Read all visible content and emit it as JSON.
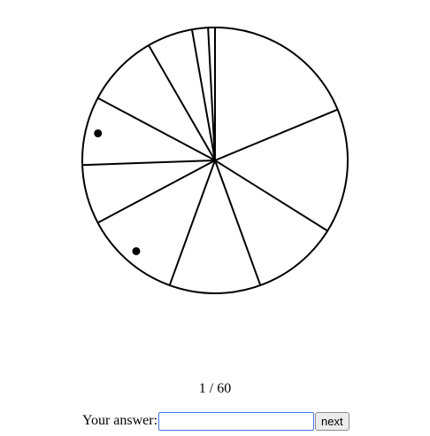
{
  "chart_data": {
    "type": "pie",
    "slice_boundaries_deg": [
      0,
      67.5,
      122,
      160,
      200,
      242,
      268,
      298,
      330,
      350,
      357
    ],
    "slices": [
      {
        "from_deg": 0,
        "to_deg": 67.5,
        "marked": false
      },
      {
        "from_deg": 67.5,
        "to_deg": 122,
        "marked": false
      },
      {
        "from_deg": 122,
        "to_deg": 160,
        "marked": false
      },
      {
        "from_deg": 160,
        "to_deg": 200,
        "marked": false
      },
      {
        "from_deg": 200,
        "to_deg": 242,
        "marked": true
      },
      {
        "from_deg": 242,
        "to_deg": 268,
        "marked": false
      },
      {
        "from_deg": 268,
        "to_deg": 298,
        "marked": true
      },
      {
        "from_deg": 298,
        "to_deg": 330,
        "marked": false
      },
      {
        "from_deg": 330,
        "to_deg": 350,
        "marked": false
      },
      {
        "from_deg": 350,
        "to_deg": 357,
        "marked": false
      },
      {
        "from_deg": 357,
        "to_deg": 360,
        "marked": false
      }
    ],
    "marker_color": "#000000"
  },
  "progress": {
    "text": "1 / 60"
  },
  "answer": {
    "label": "Your answer:",
    "value": "",
    "next_label": "next"
  }
}
